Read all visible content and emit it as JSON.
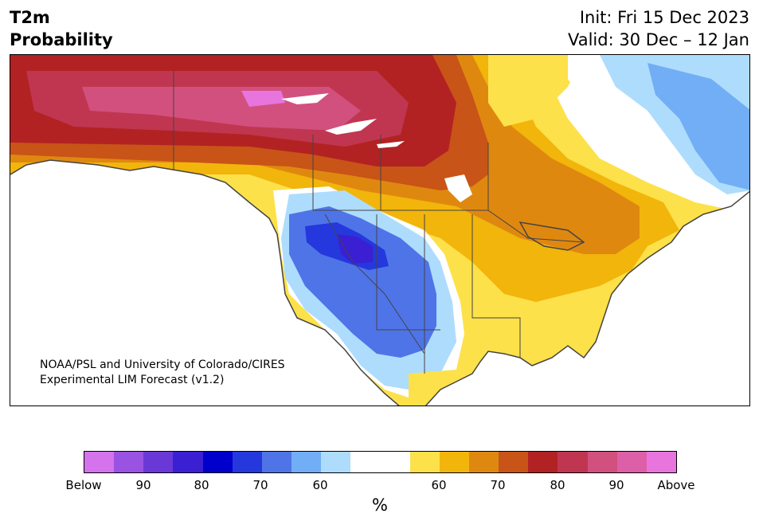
{
  "header": {
    "title_line1": "T2m",
    "title_line2": "Probability",
    "init_text": "Init: Fri 15 Dec 2023",
    "valid_text": "Valid: 30 Dec – 12 Jan"
  },
  "map": {
    "credit_line1": "NOAA/PSL and University of Colorado/CIRES",
    "credit_line2": "Experimental LIM Forecast (v1.2)",
    "colors": {
      "below95": "#d473eb",
      "below90": "#9a52e2",
      "below85": "#6b38d8",
      "below80": "#3b1fd2",
      "below75": "#0000cc",
      "below70": "#2438dd",
      "below65": "#4f74e8",
      "below60": "#72aef5",
      "below55": "#aedcfd",
      "neutral": "#ffffff",
      "above55": "#fde14a",
      "above60": "#f2b50b",
      "above65": "#df8810",
      "above70": "#c85417",
      "above75": "#b22222",
      "above80": "#c03650",
      "above85": "#d2507e",
      "above90": "#dc5fa8",
      "above95": "#e875de",
      "land_outline": "#444444"
    }
  },
  "legend": {
    "colors": [
      "#d473eb",
      "#9a52e2",
      "#6b38d8",
      "#3b1fd2",
      "#0000cc",
      "#2438dd",
      "#4f74e8",
      "#72aef5",
      "#aedcfd",
      "#ffffff",
      "#fde14a",
      "#f2b50b",
      "#df8810",
      "#c85417",
      "#b22222",
      "#c03650",
      "#d2507e",
      "#dc5fa8",
      "#e875de"
    ],
    "tick_labels": [
      "Below",
      "90",
      "80",
      "70",
      "60",
      "60",
      "70",
      "80",
      "90",
      "Above"
    ],
    "unit_label": "%"
  }
}
